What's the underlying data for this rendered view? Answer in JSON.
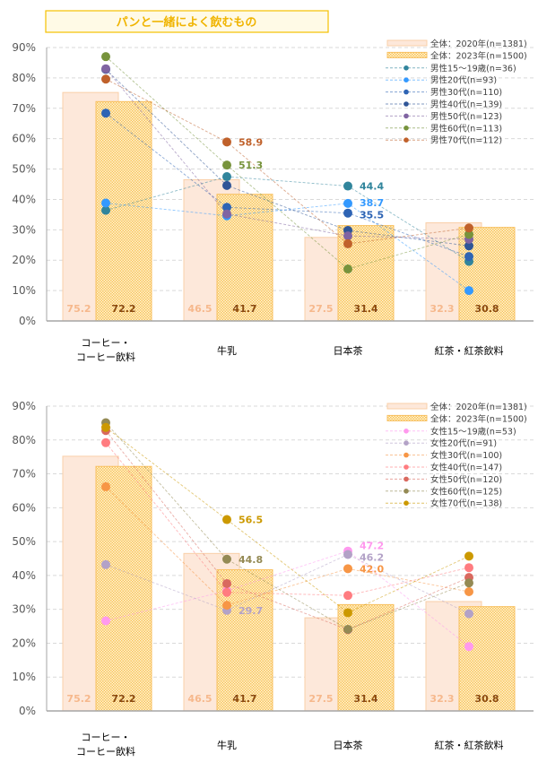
{
  "title": "パンと一緒によく飲むもの",
  "colors": {
    "bar2020_fill": "#fde8da",
    "bar2020_stroke": "#f9cfa8",
    "bar2023_fill": "#fbd985",
    "bar2023_stroke": "#f8c060",
    "title_border": "#f5c000",
    "title_bg": "#fffae6"
  },
  "chart_data": [
    {
      "type": "bar+line",
      "categories": [
        "コーヒー・コーヒー飲料",
        "牛乳",
        "日本茶",
        "紅茶・紅茶飲料"
      ],
      "yticks": [
        "0%",
        "10%",
        "20%",
        "30%",
        "40%",
        "50%",
        "60%",
        "70%",
        "80%",
        "90%"
      ],
      "ylim": [
        0,
        90
      ],
      "grid": true,
      "legend_position": "top-right",
      "bars": [
        {
          "name": "全体：2020年(n=1381)",
          "values": [
            75.2,
            46.5,
            27.5,
            32.3
          ]
        },
        {
          "name": "全体：2023年(n=1500)",
          "values": [
            72.2,
            41.7,
            31.4,
            30.8
          ]
        }
      ],
      "series": [
        {
          "name": "男性15～19歳(n=36)",
          "color": "#31859c",
          "values": [
            36.4,
            47.5,
            44.4,
            19.6
          ],
          "labels": [
            null,
            null,
            "44.4",
            null
          ]
        },
        {
          "name": "男性20代(n=93)",
          "color": "#3399ff",
          "values": [
            38.8,
            34.6,
            38.7,
            10.0
          ],
          "labels": [
            null,
            null,
            "38.7",
            null
          ]
        },
        {
          "name": "男性30代(n=110)",
          "color": "#2e64b4",
          "values": [
            68.4,
            37.4,
            35.5,
            21.2
          ],
          "labels": [
            null,
            null,
            "35.5",
            null
          ]
        },
        {
          "name": "男性40代(n=139)",
          "color": "#2f5597",
          "values": [
            82.8,
            44.6,
            29.8,
            24.7
          ],
          "labels": [
            null,
            null,
            null,
            null
          ]
        },
        {
          "name": "男性50代(n=123)",
          "color": "#8064a2",
          "values": [
            83.0,
            35.2,
            28.0,
            26.9
          ],
          "labels": [
            null,
            null,
            null,
            null
          ]
        },
        {
          "name": "男性60代(n=113)",
          "color": "#77933c",
          "values": [
            87.0,
            51.3,
            17.1,
            28.5
          ],
          "labels": [
            null,
            "51.3",
            null,
            null
          ]
        },
        {
          "name": "男性70代(n=112)",
          "color": "#c0612b",
          "values": [
            79.6,
            58.9,
            25.4,
            30.6
          ],
          "labels": [
            null,
            "58.9",
            null,
            null
          ]
        }
      ]
    },
    {
      "type": "bar+line",
      "categories": [
        "コーヒー・コーヒー飲料",
        "牛乳",
        "日本茶",
        "紅茶・紅茶飲料"
      ],
      "yticks": [
        "0%",
        "10%",
        "20%",
        "30%",
        "40%",
        "50%",
        "60%",
        "70%",
        "80%",
        "90%"
      ],
      "ylim": [
        0,
        90
      ],
      "grid": true,
      "legend_position": "top-right",
      "bars": [
        {
          "name": "全体：2020年(n=1381)",
          "values": [
            75.2,
            46.5,
            27.5,
            32.3
          ]
        },
        {
          "name": "全体：2023年(n=1500)",
          "values": [
            72.2,
            41.7,
            31.4,
            30.8
          ]
        }
      ],
      "series": [
        {
          "name": "女性15～19歳(n=53)",
          "color": "#ff99ee",
          "values": [
            26.6,
            35.5,
            47.2,
            19.0
          ],
          "labels": [
            null,
            null,
            "47.2",
            null
          ]
        },
        {
          "name": "女性20代(n=91)",
          "color": "#b3a2c7",
          "values": [
            43.2,
            29.7,
            46.2,
            28.7
          ],
          "labels": [
            null,
            "29.7",
            "46.2",
            null
          ]
        },
        {
          "name": "女性30代(n=100)",
          "color": "#f79646",
          "values": [
            66.2,
            31.2,
            42.0,
            35.2
          ],
          "labels": [
            null,
            null,
            "42.0",
            null
          ]
        },
        {
          "name": "女性40代(n=147)",
          "color": "#ff7c80",
          "values": [
            79.2,
            35.0,
            34.1,
            42.3
          ],
          "labels": [
            null,
            null,
            null,
            null
          ]
        },
        {
          "name": "女性50代(n=120)",
          "color": "#d9695f",
          "values": [
            82.8,
            37.6,
            24.0,
            39.4
          ],
          "labels": [
            null,
            null,
            null,
            null
          ]
        },
        {
          "name": "女性60代(n=125)",
          "color": "#948a54",
          "values": [
            85.1,
            44.8,
            24.1,
            37.8
          ],
          "labels": [
            null,
            "44.8",
            null,
            null
          ]
        },
        {
          "name": "女性70代(n=138)",
          "color": "#cc9900",
          "values": [
            83.7,
            56.5,
            29.0,
            45.7
          ],
          "labels": [
            null,
            "56.5",
            null,
            null
          ]
        }
      ]
    }
  ]
}
